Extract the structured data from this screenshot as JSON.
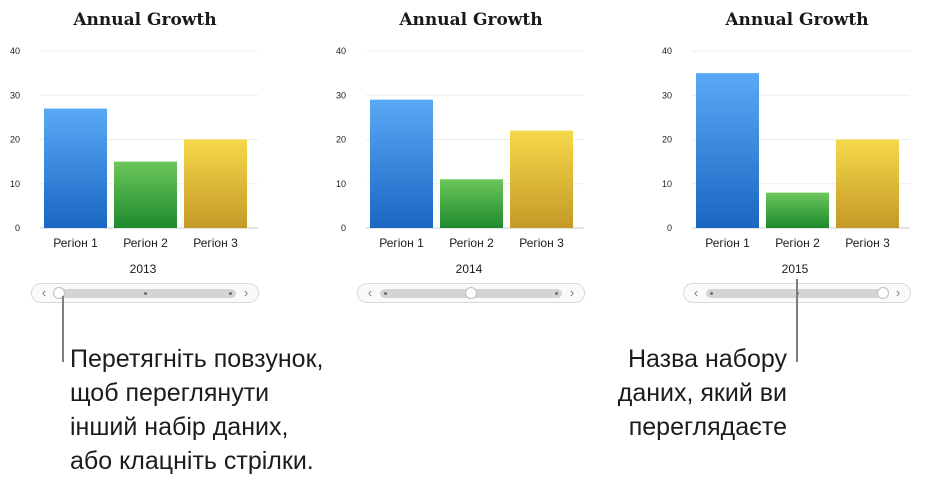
{
  "chart_data": [
    {
      "type": "bar",
      "title": "Annual Growth",
      "categories": [
        "Регіон 1",
        "Регіон 2",
        "Регіон 3"
      ],
      "values": [
        27,
        15,
        20
      ],
      "dataset_name": "2013",
      "yticks": [
        "0",
        "10",
        "20",
        "30",
        "40"
      ],
      "ylim": [
        0,
        40
      ],
      "grid": true,
      "slider_position": 0
    },
    {
      "type": "bar",
      "title": "Annual Growth",
      "categories": [
        "Регіон 1",
        "Регіон 2",
        "Регіон 3"
      ],
      "values": [
        29,
        11,
        22
      ],
      "dataset_name": "2014",
      "yticks": [
        "0",
        "10",
        "20",
        "30",
        "40"
      ],
      "ylim": [
        0,
        40
      ],
      "grid": true,
      "slider_position": 0.5
    },
    {
      "type": "bar",
      "title": "Annual Growth",
      "categories": [
        "Регіон 1",
        "Регіон 2",
        "Регіон 3"
      ],
      "values": [
        35,
        8,
        20
      ],
      "dataset_name": "2015",
      "yticks": [
        "0",
        "10",
        "20",
        "30",
        "40"
      ],
      "ylim": [
        0,
        40
      ],
      "grid": true,
      "slider_position": 1
    }
  ],
  "bar_colors": [
    {
      "top": "#5aa9f6",
      "bottom": "#1a66c2"
    },
    {
      "top": "#6cc75a",
      "bottom": "#1e8a2e"
    },
    {
      "top": "#f6d84a",
      "bottom": "#c49a27"
    }
  ],
  "slider": {
    "left_arrow": "‹",
    "right_arrow": "›",
    "stops": 3
  },
  "callouts": {
    "left": [
      "Перетягніть повзунок,",
      "щоб переглянути",
      "інший набір даних,",
      "або клацніть стрілки."
    ],
    "right": [
      "Назва набору",
      "даних, який ви",
      "переглядаєте"
    ]
  }
}
